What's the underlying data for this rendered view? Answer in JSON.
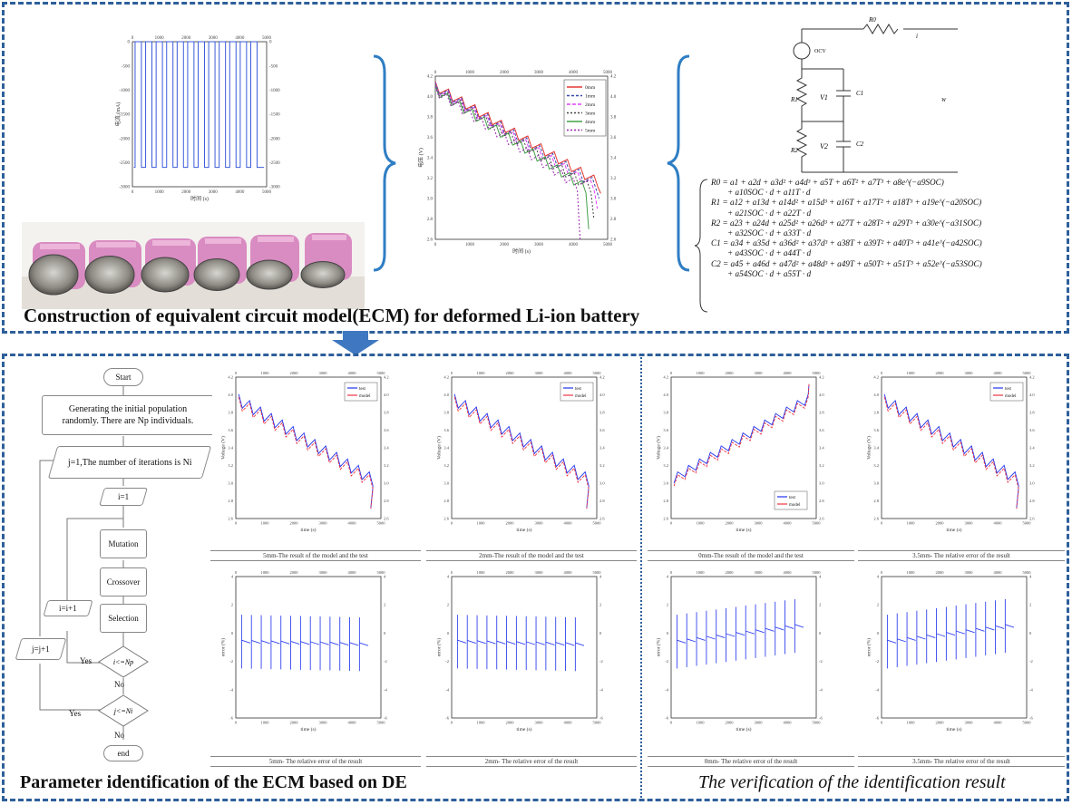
{
  "top_panel": {
    "title": "Construction of equivalent circuit model(ECM) for deformed Li-ion battery",
    "current_plot": {
      "xlabel": "时间 (s)",
      "ylabel": "电流 (mA)",
      "x_ticks": [
        "0",
        "1000",
        "2000",
        "3000",
        "4000",
        "5000"
      ],
      "y_ticks": [
        "0",
        "-500",
        "-1000",
        "-1500",
        "-2000",
        "-2500",
        "-3000"
      ],
      "chart_data": {
        "type": "line",
        "xlabel": "时间 (s)",
        "ylabel": "电流 (mA)",
        "xlim": [
          0,
          5000
        ],
        "ylim": [
          -3000,
          0
        ],
        "pulses": 12,
        "high_value": 0,
        "low_value": -2600
      }
    },
    "voltage_plot": {
      "xlabel": "时间 (s)",
      "ylabel": "电压 (V)",
      "x_ticks": [
        "0",
        "1000",
        "2000",
        "3000",
        "4000",
        "5000"
      ],
      "y_ticks": [
        "4.2",
        "4.0",
        "3.8",
        "3.6",
        "3.4",
        "3.2",
        "3.0",
        "2.8",
        "2.6"
      ],
      "legend": [
        "0mm",
        "1mm",
        "2mm",
        "3mm",
        "4mm",
        "5mm"
      ],
      "colors": [
        "#e53935",
        "#3949ab",
        "#e040fb",
        "#444444",
        "#43a047",
        "#9c27b0"
      ],
      "chart_data": {
        "type": "line",
        "xlabel": "时间 (s)",
        "ylabel": "电压 (V)",
        "xlim": [
          0,
          5000
        ],
        "ylim": [
          2.6,
          4.2
        ],
        "series": [
          {
            "name": "0mm",
            "end_time": 4800,
            "start": 4.15,
            "end": 3.05
          },
          {
            "name": "1mm",
            "end_time": 4750,
            "start": 4.14,
            "end": 3.0
          },
          {
            "name": "2mm",
            "end_time": 4700,
            "start": 4.13,
            "end": 2.9
          },
          {
            "name": "3mm",
            "end_time": 4600,
            "start": 4.12,
            "end": 2.8
          },
          {
            "name": "4mm",
            "end_time": 4450,
            "start": 4.11,
            "end": 2.7
          },
          {
            "name": "5mm",
            "end_time": 4200,
            "start": 4.1,
            "end": 2.6
          }
        ]
      }
    },
    "photo_label": "deformed-batteries-photo",
    "circuit": {
      "labels": [
        "R0",
        "i",
        "OCV",
        "R1",
        "C1",
        "V1",
        "R2",
        "C2",
        "V2",
        "W"
      ]
    },
    "equations": [
      [
        "R0 = a1 + a2d + a3d² + a4d³ + a5T + a6T² + a7T³ + a8e^(−a9SOC)",
        "+ a10SOC · d + a11T · d"
      ],
      [
        "R1 = a12 + a13d + a14d² + a15d³ + a16T + a17T² + a18T³ + a19e^(−a20SOC)",
        "+ a21SOC · d + a22T · d"
      ],
      [
        "R2 = a23 + a24d + a25d² + a26d³ + a27T + a28T² + a29T³ + a30e^(−a31SOC)",
        "+ a32SOC · d + a33T · d"
      ],
      [
        "C1 = a34 + a35d + a36d² + a37d³ + a38T + a39T² + a40T³ + a41e^(−a42SOC)",
        "+ a43SOC · d + a44T · d"
      ],
      [
        "C2 = a45 + a46d + a47d² + a48d³ + a49T + a50T² + a51T³ + a52e^(−a53SOC)",
        "+ a54SOC · d + a55T · d"
      ]
    ]
  },
  "flowchart": {
    "start": "Start",
    "init": "Generating the initial population randomly. There are Np individuals.",
    "iter": "j=1,The number of iterations is Ni",
    "i_init": "i=1",
    "mutation": "Mutation",
    "crossover": "Crossover",
    "selection": "Selection",
    "i_inc": "i=i+1",
    "j_inc": "j=j+1",
    "cond_i": "i<=Np",
    "cond_j": "j<=Ni",
    "yes": "Yes",
    "no": "No",
    "end": "end"
  },
  "bottom_left": {
    "title": "Parameter identification of the ECM based on DE",
    "plots": [
      {
        "caption": "5mm-The result of the model and the test",
        "xlabel": "time (s)",
        "ylabel": "Voltage (V)",
        "legend": [
          "test",
          "model"
        ]
      },
      {
        "caption": "2mm-The result of the model and the test",
        "xlabel": "time (s)",
        "ylabel": "Voltage (V)",
        "legend": [
          "test",
          "model"
        ]
      },
      {
        "caption": "5mm- The relative error of the result",
        "xlabel": "time (s)",
        "ylabel": "error (%)"
      },
      {
        "caption": "2mm- The relative error of the result",
        "xlabel": "time (s)",
        "ylabel": "error (%)"
      }
    ]
  },
  "bottom_right": {
    "title": "The verification of the identification result",
    "plots": [
      {
        "caption": "0mm-The result of the model and the test",
        "xlabel": "time (s)",
        "ylabel": "Voltage (V)",
        "legend": [
          "test",
          "model"
        ]
      },
      {
        "caption": "3.5mm- The relative error of the result",
        "xlabel": "time (s)",
        "ylabel": "Voltage (V)",
        "legend": [
          "test",
          "model"
        ]
      },
      {
        "caption": "0mm- The relative error of the result",
        "xlabel": "time (s)",
        "ylabel": "error (%)"
      },
      {
        "caption": "3.5mm- The relative error of the result",
        "xlabel": "time (s)",
        "ylabel": "error (%)"
      }
    ]
  },
  "colors": {
    "panel_border": "#2e5f9a",
    "bracket": "#2f7ec4",
    "arrow": "#3f78c0",
    "test": "#2233ee",
    "model": "#ee3344"
  }
}
